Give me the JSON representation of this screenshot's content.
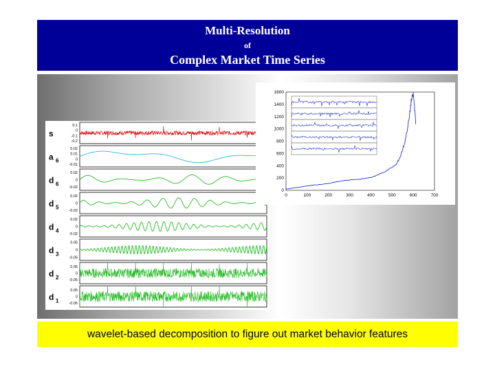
{
  "slide": {
    "title_line1": "Multi-Resolution",
    "title_line2": "of",
    "title_line3": "Complex Market Time Series",
    "caption": "wavelet-based decomposition to figure out market behavior features"
  },
  "colors": {
    "title_band": "#000099",
    "caption_band": "#ffff00",
    "signal": "#dd0000",
    "approximation": "#2ab8d8",
    "detail": "#22bb22",
    "price": "#2233cc"
  },
  "chart_data": [
    {
      "type": "line",
      "description_kind": "multi-panel wavelet decomposition",
      "x": {
        "ticks": [
          "0",
          "100",
          "200",
          "300",
          "400",
          "500",
          "600"
        ],
        "range": [
          0,
          650
        ]
      },
      "panels": [
        {
          "name": "s",
          "sub": "",
          "yticks": [
            "0.1",
            "0",
            "-0.1",
            "-0.2"
          ],
          "range": [
            -0.25,
            0.15
          ],
          "color": "#dd0000",
          "kind": "noisy",
          "amplitude": 0.05
        },
        {
          "name": "a",
          "sub": "6",
          "yticks": [
            "0.02",
            "0.01",
            "0",
            "-0.01"
          ],
          "range": [
            -0.015,
            0.025
          ],
          "color": "#2ab8d8",
          "kind": "smooth",
          "amplitude": 0.008
        },
        {
          "name": "d",
          "sub": "6",
          "yticks": [
            "0.02",
            "0",
            "-0.02"
          ],
          "range": [
            -0.03,
            0.03
          ],
          "color": "#22bb22",
          "kind": "wave",
          "period": 120,
          "amplitude": 0.014
        },
        {
          "name": "d",
          "sub": "5",
          "yticks": [
            "0.02",
            "0",
            "-0.02"
          ],
          "range": [
            -0.03,
            0.03
          ],
          "color": "#22bb22",
          "kind": "wave",
          "period": 55,
          "amplitude": 0.015
        },
        {
          "name": "d",
          "sub": "4",
          "yticks": [
            "0.02",
            "0",
            "-0.02"
          ],
          "range": [
            -0.03,
            0.03
          ],
          "color": "#22bb22",
          "kind": "wave",
          "period": 26,
          "amplitude": 0.014
        },
        {
          "name": "d",
          "sub": "3",
          "yticks": [
            "0.05",
            "0",
            "-0.05"
          ],
          "range": [
            -0.07,
            0.07
          ],
          "color": "#22bb22",
          "kind": "wave",
          "period": 12,
          "amplitude": 0.03
        },
        {
          "name": "d",
          "sub": "2",
          "yticks": [
            "0.05",
            "0",
            "-0.05"
          ],
          "range": [
            -0.08,
            0.08
          ],
          "color": "#22bb22",
          "kind": "noisy",
          "amplitude": 0.045
        },
        {
          "name": "d",
          "sub": "1",
          "yticks": [
            "0.05",
            "0",
            "-0.05"
          ],
          "range": [
            -0.08,
            0.08
          ],
          "color": "#22bb22",
          "kind": "noisy",
          "amplitude": 0.05
        }
      ]
    },
    {
      "type": "line",
      "description_kind": "market price series",
      "x": {
        "ticks": [
          "0",
          "100",
          "200",
          "300",
          "400",
          "500",
          "600",
          "700"
        ],
        "range": [
          0,
          700
        ]
      },
      "y": {
        "ticks": [
          "0",
          "200",
          "400",
          "600",
          "800",
          "1000",
          "1200",
          "1400",
          "1600"
        ],
        "range": [
          0,
          1600
        ]
      },
      "series": [
        {
          "color": "#2233cc",
          "x": [
            0,
            40,
            80,
            120,
            160,
            200,
            240,
            280,
            320,
            360,
            400,
            440,
            480,
            520,
            540,
            560,
            580,
            590,
            600,
            606,
            612
          ],
          "y": [
            20,
            40,
            60,
            80,
            95,
            110,
            140,
            160,
            175,
            185,
            210,
            260,
            330,
            420,
            560,
            780,
            1150,
            1450,
            1560,
            1350,
            1080
          ]
        }
      ],
      "inset_rows": 5
    }
  ]
}
